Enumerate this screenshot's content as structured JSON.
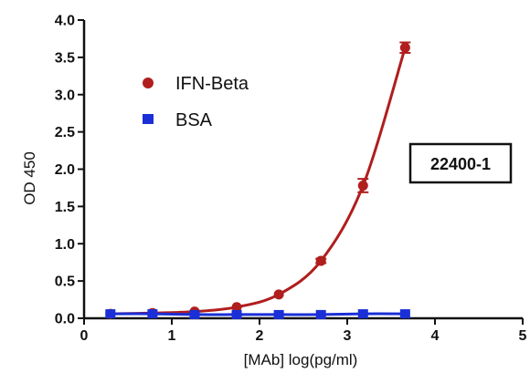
{
  "chart_data": {
    "type": "line",
    "title": "",
    "xlabel": "[MAb] log(pg/ml)",
    "ylabel": "OD 450",
    "xlim": [
      0,
      5
    ],
    "ylim": [
      0,
      4.0
    ],
    "x_ticks": [
      "0",
      "1",
      "2",
      "3",
      "4",
      "5"
    ],
    "y_ticks": [
      "0.0",
      "0.5",
      "1.0",
      "1.5",
      "2.0",
      "2.5",
      "3.0",
      "3.5",
      "4.0"
    ],
    "grid": false,
    "legend_position": "top-left",
    "annotation": "22400-1",
    "series": [
      {
        "name": "IFN-Beta",
        "color": "#b01e1e",
        "marker": "circle",
        "x": [
          0.3,
          0.78,
          1.26,
          1.74,
          2.22,
          2.7,
          3.18,
          3.66
        ],
        "y": [
          0.06,
          0.07,
          0.09,
          0.15,
          0.32,
          0.77,
          1.78,
          3.63
        ],
        "error": [
          0,
          0,
          0,
          0,
          0,
          0.03,
          0.09,
          0.07
        ],
        "fit": "curve"
      },
      {
        "name": "BSA",
        "color": "#1a2fd6",
        "marker": "square",
        "x": [
          0.3,
          0.78,
          1.26,
          1.74,
          2.22,
          2.7,
          3.18,
          3.66
        ],
        "y": [
          0.06,
          0.06,
          0.05,
          0.05,
          0.05,
          0.05,
          0.06,
          0.06
        ],
        "fit": "line"
      }
    ]
  }
}
